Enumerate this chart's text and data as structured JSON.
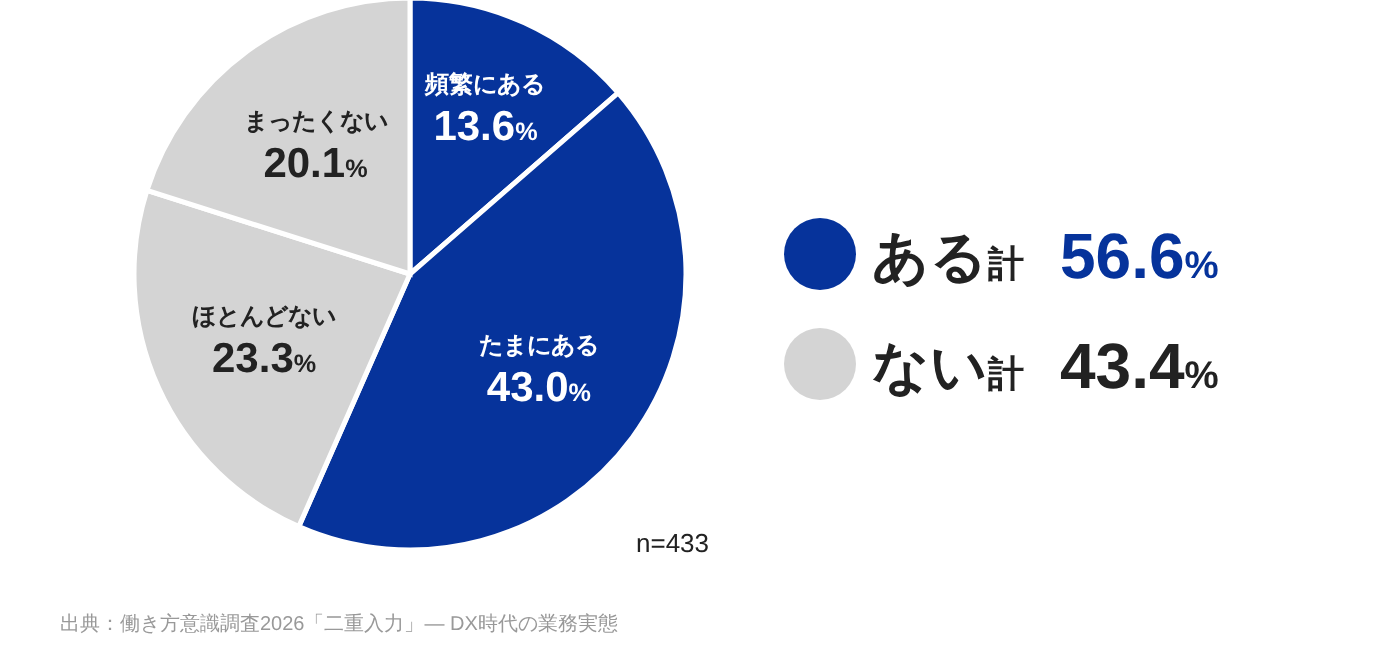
{
  "chart_data": {
    "type": "pie",
    "categories": [
      "頻繁にある",
      "たまにある",
      "ほとんどない",
      "まったくない"
    ],
    "values": [
      13.6,
      43.0,
      23.3,
      20.1
    ],
    "value_labels": [
      "13.6%",
      "43.0%",
      "23.3%",
      "20.1%"
    ],
    "colors": [
      "#06339b",
      "#06339b",
      "#d4d4d4",
      "#d4d4d4"
    ],
    "annotations": [
      "ある計 56.6%",
      "ない計 43.4%",
      "n=433",
      "出典：働き方意識調査2026「二重入力」— DX時代の業務実態"
    ]
  }
}
